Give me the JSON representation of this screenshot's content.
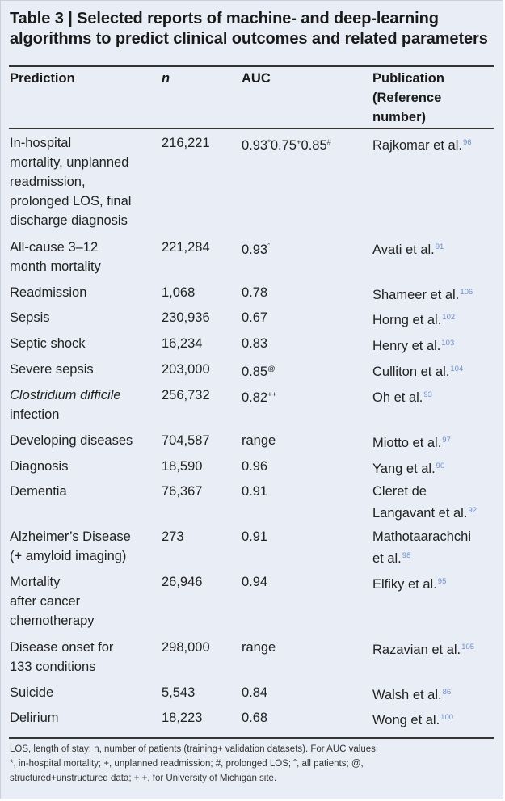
{
  "title": "Table 3 | Selected reports of machine- and deep-learning algorithms to predict clinical outcomes and related parameters",
  "headers": {
    "prediction": "Prediction",
    "n": "n",
    "auc": "AUC",
    "publication_lines": [
      "Publication",
      "(Reference",
      "number)"
    ]
  },
  "rows": [
    {
      "prediction": [
        "In-hospital",
        "mortality, unplanned",
        "readmission,",
        "prolonged LOS, final",
        "discharge diagnosis"
      ],
      "italic": false,
      "n": "216,221",
      "auc": [
        [
          "0.93",
          "*"
        ],
        [
          "0.75",
          "+"
        ],
        [
          "0.85",
          "#"
        ]
      ],
      "publication": [
        "Rajkomar et al."
      ],
      "ref": "96"
    },
    {
      "prediction": [
        "All-cause 3–12",
        "month mortality"
      ],
      "italic": false,
      "n": "221,284",
      "auc": [
        [
          "0.93",
          "ˆ"
        ]
      ],
      "publication": [
        "Avati et al."
      ],
      "ref": "91"
    },
    {
      "prediction": [
        "Readmission"
      ],
      "italic": false,
      "n": "1,068",
      "auc": [
        [
          "0.78",
          ""
        ]
      ],
      "publication": [
        "Shameer et al."
      ],
      "ref": "106"
    },
    {
      "prediction": [
        "Sepsis"
      ],
      "italic": false,
      "n": "230,936",
      "auc": [
        [
          "0.67",
          ""
        ]
      ],
      "publication": [
        "Horng et al."
      ],
      "ref": "102"
    },
    {
      "prediction": [
        "Septic shock"
      ],
      "italic": false,
      "n": "16,234",
      "auc": [
        [
          "0.83",
          ""
        ]
      ],
      "publication": [
        "Henry et al."
      ],
      "ref": "103"
    },
    {
      "prediction": [
        "Severe sepsis"
      ],
      "italic": false,
      "n": "203,000",
      "auc": [
        [
          "0.85",
          "@"
        ]
      ],
      "publication": [
        "Culliton et al."
      ],
      "ref": "104"
    },
    {
      "prediction": [
        "Clostridium difficile",
        "infection"
      ],
      "italic": true,
      "n": "256,732",
      "auc": [
        [
          "0.82",
          "++"
        ]
      ],
      "publication": [
        "Oh et al."
      ],
      "ref": "93"
    },
    {
      "prediction": [
        "Developing diseases"
      ],
      "italic": false,
      "n": "704,587",
      "auc": [
        [
          "range",
          ""
        ]
      ],
      "publication": [
        "Miotto et al."
      ],
      "ref": "97"
    },
    {
      "prediction": [
        "Diagnosis"
      ],
      "italic": false,
      "n": "18,590",
      "auc": [
        [
          "0.96",
          ""
        ]
      ],
      "publication": [
        "Yang et al."
      ],
      "ref": "90"
    },
    {
      "prediction": [
        "Dementia"
      ],
      "italic": false,
      "n": "76,367",
      "auc": [
        [
          "0.91",
          ""
        ]
      ],
      "publication": [
        "Cleret de",
        "Langavant et al."
      ],
      "ref": "92"
    },
    {
      "prediction": [
        "Alzheimer’s Disease",
        "(+ amyloid imaging)"
      ],
      "italic": false,
      "n": "273",
      "auc": [
        [
          "0.91",
          ""
        ]
      ],
      "publication": [
        "Mathotaarachchi",
        "et al."
      ],
      "ref": "98"
    },
    {
      "prediction": [
        "Mortality",
        "after cancer",
        "chemotherapy"
      ],
      "italic": false,
      "n": "26,946",
      "auc": [
        [
          "0.94",
          ""
        ]
      ],
      "publication": [
        "Elfiky et al."
      ],
      "ref": "95"
    },
    {
      "prediction": [
        "Disease onset for",
        "133 conditions"
      ],
      "italic": false,
      "n": "298,000",
      "auc": [
        [
          "range",
          ""
        ]
      ],
      "publication": [
        "Razavian et al."
      ],
      "ref": "105"
    },
    {
      "prediction": [
        "Suicide"
      ],
      "italic": false,
      "n": "5,543",
      "auc": [
        [
          "0.84",
          ""
        ]
      ],
      "publication": [
        "Walsh et al."
      ],
      "ref": "86"
    },
    {
      "prediction": [
        "Delirium"
      ],
      "italic": false,
      "n": "18,223",
      "auc": [
        [
          "0.68",
          ""
        ]
      ],
      "publication": [
        "Wong et al."
      ],
      "ref": "100"
    }
  ],
  "footnote_lines": [
    "LOS, length of stay; n, number of patients (training+ validation datasets). For AUC values:",
    "*, in-hospital mortality; +, unplanned readmission; #, prolonged LOS; ˆ, all patients; @,",
    "structured+unstructured data; + +, for University of Michigan site."
  ]
}
